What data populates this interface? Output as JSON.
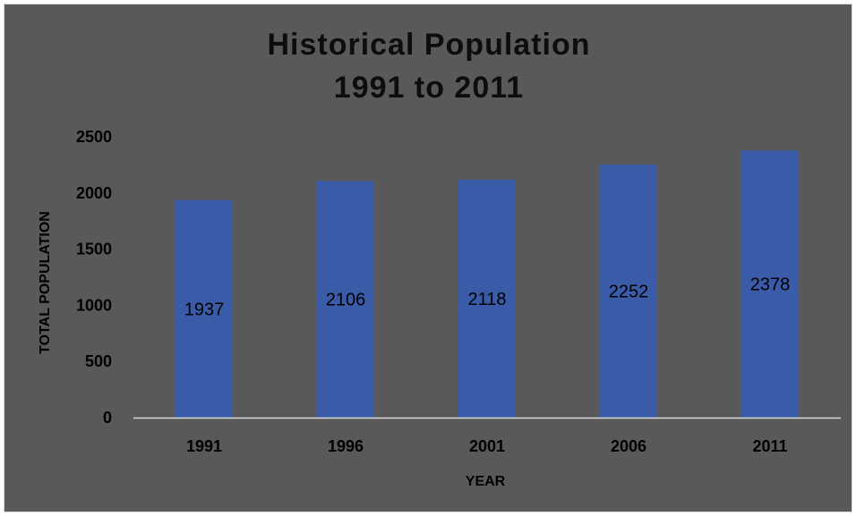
{
  "colors": {
    "background": "#595959",
    "bar": "#3a5ba8",
    "axis_line": "#d9d9d9",
    "text": "#000000"
  },
  "chart_data": {
    "type": "bar",
    "title_lines": [
      "Historical Population",
      "1991 to 2011"
    ],
    "xlabel": "YEAR",
    "ylabel": "TOTAL POPULATION",
    "categories": [
      "1991",
      "1996",
      "2001",
      "2006",
      "2011"
    ],
    "values": [
      1937,
      2106,
      2118,
      2252,
      2378
    ],
    "data_labels": [
      "1937",
      "2106",
      "2118",
      "2252",
      "2378"
    ],
    "ylim": [
      0,
      2500
    ],
    "yticks": [
      0,
      500,
      1000,
      1500,
      2000,
      2500
    ],
    "grid": false,
    "legend": "none"
  }
}
